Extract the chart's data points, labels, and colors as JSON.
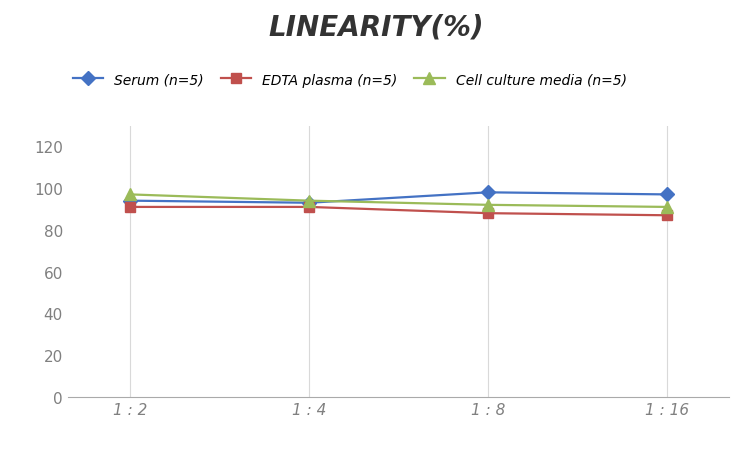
{
  "title": "LINEARITY(%)",
  "x_labels": [
    "1 : 2",
    "1 : 4",
    "1 : 8",
    "1 : 16"
  ],
  "x_positions": [
    0,
    1,
    2,
    3
  ],
  "series": [
    {
      "label": "Serum (n=5)",
      "values": [
        94,
        93,
        98,
        97
      ],
      "color": "#4472C4",
      "marker": "D",
      "markersize": 7,
      "linewidth": 1.6
    },
    {
      "label": "EDTA plasma (n=5)",
      "values": [
        91,
        91,
        88,
        87
      ],
      "color": "#C0504D",
      "marker": "s",
      "markersize": 7,
      "linewidth": 1.6
    },
    {
      "label": "Cell culture media (n=5)",
      "values": [
        97,
        94,
        92,
        91
      ],
      "color": "#9BBB59",
      "marker": "^",
      "markersize": 8,
      "linewidth": 1.6
    }
  ],
  "ylim": [
    0,
    130
  ],
  "yticks": [
    0,
    20,
    40,
    60,
    80,
    100,
    120
  ],
  "grid_color": "#D9D9D9",
  "background_color": "#FFFFFF",
  "title_fontsize": 20,
  "title_fontstyle": "italic",
  "title_fontweight": "bold",
  "legend_fontsize": 10,
  "tick_fontsize": 11,
  "tick_color": "#808080"
}
